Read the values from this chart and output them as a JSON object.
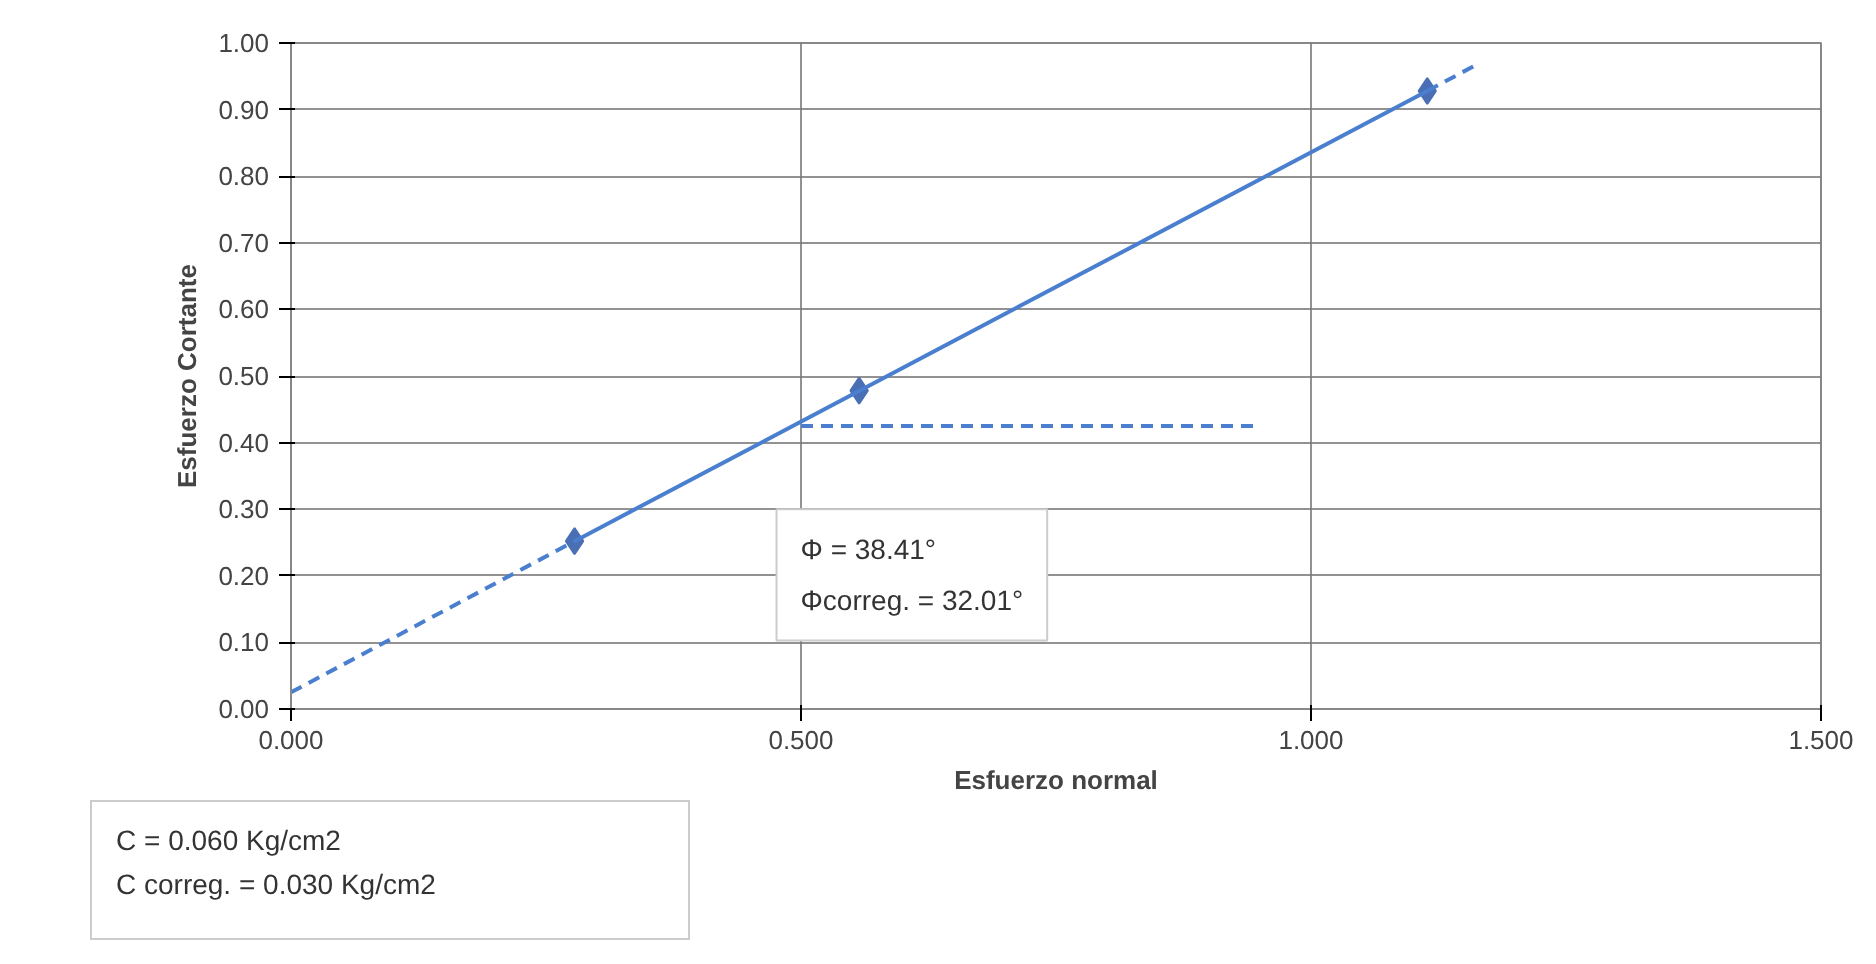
{
  "chart_data": {
    "type": "scatter",
    "xlabel": "Esfuerzo normal",
    "ylabel": "Esfuerzo Cortante",
    "xlim": [
      0,
      1.5
    ],
    "ylim": [
      0,
      1
    ],
    "xticks": [
      {
        "value": 0,
        "label": "0.000"
      },
      {
        "value": 0.5,
        "label": "0.500"
      },
      {
        "value": 1,
        "label": "1.000"
      },
      {
        "value": 1.5,
        "label": "1.500"
      }
    ],
    "yticks": [
      {
        "value": 0,
        "label": "0.00"
      },
      {
        "value": 0.1,
        "label": "0.10"
      },
      {
        "value": 0.2,
        "label": "0.20"
      },
      {
        "value": 0.3,
        "label": "0.30"
      },
      {
        "value": 0.4,
        "label": "0.40"
      },
      {
        "value": 0.5,
        "label": "0.50"
      },
      {
        "value": 0.6,
        "label": "0.60"
      },
      {
        "value": 0.7,
        "label": "0.70"
      },
      {
        "value": 0.8,
        "label": "0.80"
      },
      {
        "value": 0.9,
        "label": "0.90"
      },
      {
        "value": 1,
        "label": "1.00"
      }
    ],
    "grid": true,
    "marker": "diamond",
    "series": [
      {
        "color": "#4a6fb5",
        "x": [
          0.278,
          0.557,
          1.114
        ],
        "values": [
          0.252,
          0.478,
          0.928
        ]
      },
      {
        "type": "line",
        "color": "#4a7fcf",
        "line_style": "solid",
        "marker": "none",
        "x": [
          0.278,
          1.114
        ],
        "values": [
          0.252,
          0.928
        ]
      },
      {
        "type": "line",
        "color": "#4a7fcf",
        "line_style": "dashed",
        "marker": "none",
        "x": [
          0,
          0.278
        ],
        "values": [
          0.025,
          0.252
        ]
      },
      {
        "type": "line",
        "color": "#4a7fcf",
        "line_style": "dashed",
        "marker": "none",
        "x": [
          1.114,
          1.163
        ],
        "values": [
          0.928,
          0.968
        ]
      },
      {
        "type": "line",
        "color": "#4a7fcf",
        "line_style": "dashed",
        "marker": "none",
        "x": [
          0.5,
          0.947
        ],
        "values": [
          0.425,
          0.425
        ]
      }
    ],
    "annotations": [
      "Φ = 38.41°\nΦcorreg. = 32.01°",
      "C = 0.060 Kg/cm2\nC correg. = 0.030 Kg/cm2"
    ]
  }
}
